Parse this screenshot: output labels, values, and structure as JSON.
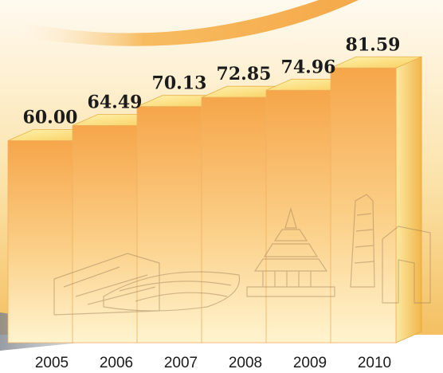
{
  "chart_data": {
    "type": "bar",
    "categories": [
      "2005",
      "2006",
      "2007",
      "2008",
      "2009",
      "2010"
    ],
    "values": [
      60.0,
      64.49,
      70.13,
      72.85,
      74.96,
      81.59
    ],
    "value_labels": [
      "60.00",
      "64.49",
      "70.13",
      "72.85",
      "74.96",
      "81.59"
    ],
    "title": "",
    "xlabel": "",
    "ylabel": "",
    "ylim": [
      0,
      90
    ],
    "grid": false,
    "legend": "none",
    "colors": {
      "bar_front_top": "#fff6bf",
      "bar_front_bottom": "#f3a63a",
      "bar_side": "#f0b545",
      "bar_top": "#ffe27a",
      "background_top": "#fdf3d7",
      "background_bottom": "#f7c66b",
      "ribbon": "#f5a430",
      "skyline": "#9a7a55",
      "floor": "#8a8f96"
    }
  }
}
